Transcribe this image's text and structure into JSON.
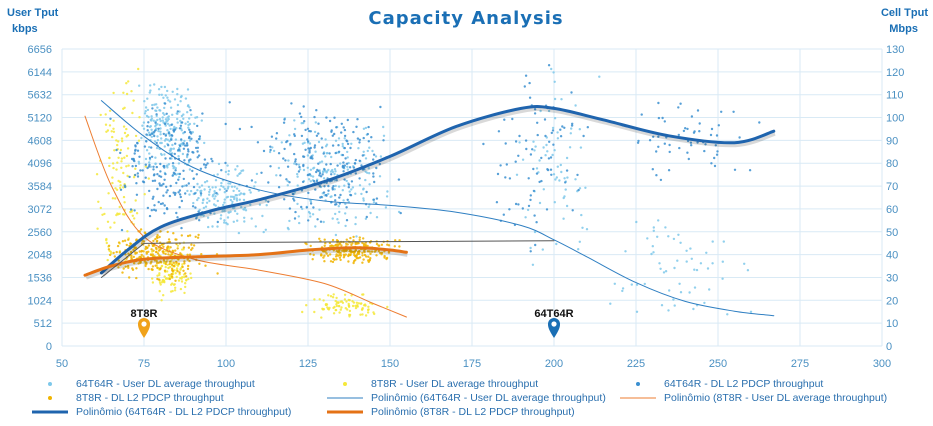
{
  "chart_data": {
    "type": "scatter",
    "title": "Capacity Analysis",
    "ylabel_left": [
      "User Tput",
      "kbps"
    ],
    "ylabel_right": [
      "Cell Tput",
      "Mbps"
    ],
    "xlim": [
      50,
      300
    ],
    "xticks": [
      50,
      75,
      100,
      125,
      150,
      175,
      200,
      225,
      250,
      275,
      300
    ],
    "ylim_left": [
      0,
      6656
    ],
    "yticks_left": [
      0,
      512,
      1024,
      1536,
      2048,
      2560,
      3072,
      3584,
      4096,
      4608,
      5120,
      5632,
      6144,
      6656
    ],
    "ylim_right": [
      0,
      130
    ],
    "yticks_right": [
      0,
      10,
      20,
      30,
      40,
      50,
      60,
      70,
      80,
      90,
      100,
      110,
      120,
      130
    ],
    "grid": true,
    "legend_position": "bottom",
    "markers": [
      {
        "label": "8T8R",
        "x": 75,
        "color": "#f0a21a"
      },
      {
        "label": "64T64R",
        "x": 200,
        "color": "#1a6fb5"
      }
    ],
    "series": [
      {
        "name": "64T64R - User DL average throughput",
        "kind": "scatter",
        "axis": "left",
        "color": "#7ec8ea",
        "clusters": [
          {
            "x": [
              70,
              95
            ],
            "y": [
              3600,
              6000
            ],
            "n": 220
          },
          {
            "x": [
              85,
              115
            ],
            "y": [
              2500,
              4200
            ],
            "n": 160
          },
          {
            "x": [
              105,
              160
            ],
            "y": [
              2400,
              5200
            ],
            "n": 200
          },
          {
            "x": [
              185,
              215
            ],
            "y": [
              1500,
              6600
            ],
            "n": 70
          },
          {
            "x": [
              210,
              265
            ],
            "y": [
              500,
              3000
            ],
            "n": 60
          }
        ]
      },
      {
        "name": "8T8R - User DL average throughput",
        "kind": "scatter",
        "axis": "left",
        "color": "#f5e83a",
        "clusters": [
          {
            "x": [
              58,
              78
            ],
            "y": [
              1500,
              6500
            ],
            "n": 120
          },
          {
            "x": [
              75,
              92
            ],
            "y": [
              1000,
              2400
            ],
            "n": 120
          },
          {
            "x": [
              120,
              150
            ],
            "y": [
              600,
              1200
            ],
            "n": 90
          }
        ]
      },
      {
        "name": "64T64R - DL L2 PDCP throughput",
        "kind": "scatter",
        "axis": "right",
        "color": "#3a8fd0",
        "clusters": [
          {
            "x": [
              60,
              105
            ],
            "y": [
              50,
              110
            ],
            "n": 220
          },
          {
            "x": [
              100,
              160
            ],
            "y": [
              50,
              110
            ],
            "n": 220
          },
          {
            "x": [
              175,
              215
            ],
            "y": [
              40,
              128
            ],
            "n": 80
          },
          {
            "x": [
              215,
              268
            ],
            "y": [
              70,
              110
            ],
            "n": 60
          }
        ]
      },
      {
        "name": "8T8R - DL L2 PDCP throughput",
        "kind": "scatter",
        "axis": "right",
        "color": "#f0b400",
        "clusters": [
          {
            "x": [
              58,
              100
            ],
            "y": [
              28,
              52
            ],
            "n": 260
          },
          {
            "x": [
              120,
              156
            ],
            "y": [
              36,
              48
            ],
            "n": 220
          }
        ]
      },
      {
        "name": "Polinômio (64T64R - User DL average throughput)",
        "kind": "trend",
        "axis": "left",
        "color": "#2f7fc2",
        "width": 1,
        "x": [
          62,
          75,
          90,
          110,
          130,
          150,
          170,
          190,
          200,
          210,
          225,
          240,
          255,
          267
        ],
        "y": [
          5500,
          4700,
          4000,
          3500,
          3250,
          3150,
          3000,
          2700,
          2380,
          2000,
          1420,
          1000,
          780,
          680
        ]
      },
      {
        "name": "Polinômio (8T8R - User DL average throughput)",
        "kind": "trend",
        "axis": "left",
        "color": "#ed7d31",
        "width": 1,
        "x": [
          57,
          65,
          75,
          90,
          110,
          130,
          145,
          155
        ],
        "y": [
          5150,
          3600,
          2450,
          1950,
          1700,
          1400,
          950,
          650
        ]
      },
      {
        "name": "Polinômio (64T64R - DL L2 PDCP throughput)",
        "kind": "trend",
        "axis": "right",
        "color": "#1f64ae",
        "width": 3,
        "x": [
          62,
          70,
          80,
          95,
          110,
          130,
          150,
          170,
          190,
          200,
          215,
          235,
          255,
          267
        ],
        "y": [
          32,
          42,
          52,
          59,
          64,
          72,
          83,
          96,
          104,
          104,
          99,
          92,
          89,
          94
        ]
      },
      {
        "name": "Polinômio (8T8R - DL L2 PDCP throughput)",
        "kind": "trend",
        "axis": "right",
        "color": "#e47216",
        "width": 3,
        "x": [
          57,
          65,
          75,
          90,
          110,
          125,
          140,
          150,
          155
        ],
        "y": [
          31,
          35,
          38,
          39,
          40,
          42,
          43,
          42,
          41
        ]
      },
      {
        "name": "",
        "kind": "guide",
        "axis": "left",
        "color": "#555555",
        "width": 1,
        "x": [
          62,
          75,
          100,
          150,
          200
        ],
        "y": [
          1536,
          2300,
          2320,
          2340,
          2360
        ]
      }
    ]
  }
}
